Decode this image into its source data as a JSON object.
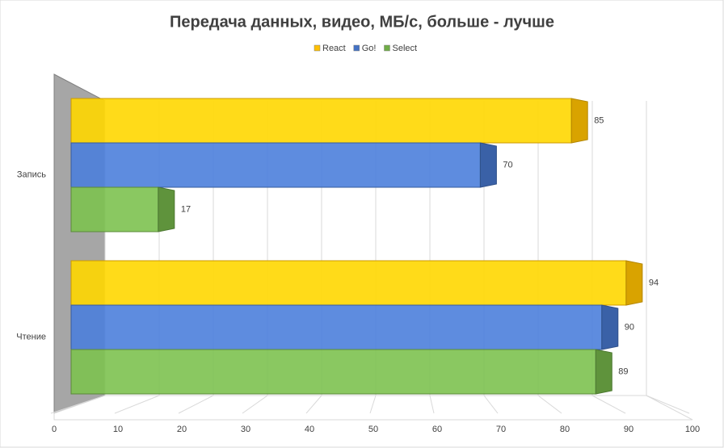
{
  "chart_data": {
    "type": "bar",
    "title": "Передача данных, видео, МБ/с, больше - лучше",
    "categories": [
      "Запись",
      "Чтение"
    ],
    "series": [
      {
        "name": "React",
        "color": "#ffc000",
        "values": [
          85,
          94
        ]
      },
      {
        "name": "Go!",
        "color": "#4472c4",
        "values": [
          70,
          90
        ]
      },
      {
        "name": "Select",
        "color": "#70ad47",
        "values": [
          17,
          89
        ]
      }
    ],
    "xlim": [
      0,
      100
    ],
    "xticks": [
      0,
      10,
      20,
      30,
      40,
      50,
      60,
      70,
      80,
      90,
      100
    ],
    "grid": true,
    "legend": "top"
  }
}
